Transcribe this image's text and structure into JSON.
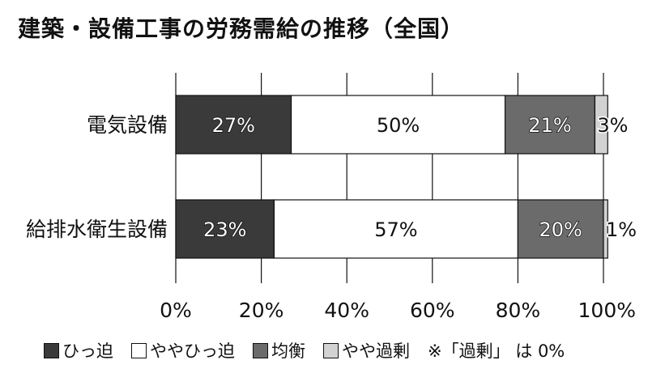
{
  "chart_data": {
    "type": "bar",
    "orientation": "horizontal",
    "stacked": true,
    "title": "建築・設備工事の労務需給の推移（全国）",
    "categories": [
      "電気設備",
      "給排水衛生設備"
    ],
    "series": [
      {
        "name": "ひっ迫",
        "color": "#3a3a3a",
        "values": [
          27,
          23
        ],
        "labels": [
          "27%",
          "23%"
        ]
      },
      {
        "name": "ややひっ迫",
        "color": "#ffffff",
        "values": [
          50,
          57
        ],
        "labels": [
          "50%",
          "57%"
        ]
      },
      {
        "name": "均衡",
        "color": "#6b6b6b",
        "values": [
          21,
          20
        ],
        "labels": [
          "21%",
          "20%"
        ]
      },
      {
        "name": "やや過剰",
        "color": "#d2d2d2",
        "values": [
          3,
          1
        ],
        "labels": [
          "3%",
          "1%"
        ]
      }
    ],
    "xlim": [
      0,
      100
    ],
    "xticks": [
      "0%",
      "20%",
      "40%",
      "60%",
      "80%",
      "100%"
    ],
    "grid": true,
    "legend_position": "bottom",
    "note": "※「過剰」 は 0%"
  }
}
